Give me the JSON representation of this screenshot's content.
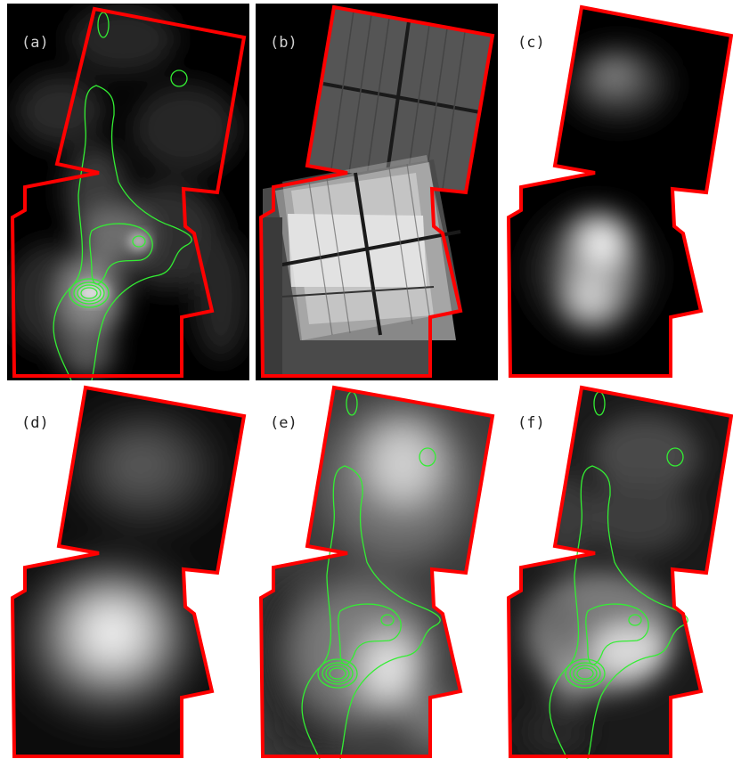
{
  "panels": [
    {
      "id": "a",
      "label": "(a)",
      "background": "#000000",
      "label_color": "#cfcfcf"
    },
    {
      "id": "b",
      "label": "(b)",
      "background": "#000000",
      "label_color": "#cfcfcf"
    },
    {
      "id": "c",
      "label": "(c)",
      "background": "#ffffff",
      "label_color": "#222222"
    },
    {
      "id": "d",
      "label": "(d)",
      "background": "#ffffff",
      "label_color": "#222222"
    },
    {
      "id": "e",
      "label": "(e)",
      "background": "#ffffff",
      "label_color": "#222222"
    },
    {
      "id": "f",
      "label": "(f)",
      "background": "#ffffff",
      "label_color": "#222222"
    }
  ],
  "colors": {
    "footprint_outline": "#ff0000",
    "contours": "#33ee33",
    "image_dark": "#101010",
    "image_bright": "#ffffff"
  }
}
